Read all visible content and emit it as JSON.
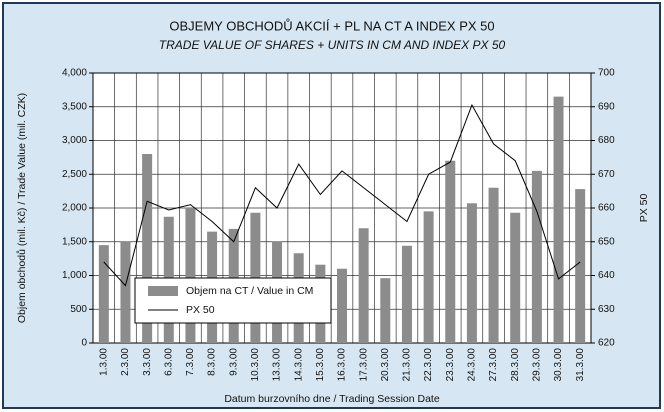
{
  "chart_data": {
    "type": "bar",
    "title": "OBJEMY OBCHODŮ AKCIÍ + PL NA CT A INDEX PX 50",
    "subtitle": "TRADE VALUE OF SHARES + UNITS IN CM AND INDEX PX 50",
    "ylabel": "Objem obchodů (mil. Kč) / Trade Value (mil. CZK)",
    "y2label": "PX 50",
    "xlabel": "Datum burzovního dne / Trading Session Date",
    "categories": [
      "1.3.00",
      "2.3.00",
      "3.3.00",
      "6.3.00",
      "7.3.00",
      "8.3.00",
      "9.3.00",
      "10.3.00",
      "13.3.00",
      "14.3.00",
      "15.3.00",
      "16.3.00",
      "17.3.00",
      "20.3.00",
      "21.3.00",
      "22.3.00",
      "23.3.00",
      "24.3.00",
      "27.3.00",
      "28.3.00",
      "29.3.00",
      "30.3.00",
      "31.3.00"
    ],
    "series": [
      {
        "name": "Objem na CT / Value in CM",
        "type": "bar",
        "color": "#8c8c8c",
        "values": [
          1450,
          1500,
          2800,
          1870,
          2000,
          1650,
          1690,
          1930,
          1500,
          1330,
          1160,
          1100,
          1700,
          960,
          1440,
          1950,
          2700,
          2070,
          2300,
          1930,
          2550,
          3650,
          2280
        ]
      },
      {
        "name": "PX 50",
        "type": "line",
        "axis": "y2",
        "color": "#000000",
        "values": [
          644,
          637,
          662,
          659.4,
          661,
          656,
          650,
          666,
          660,
          673,
          664,
          671,
          666,
          661,
          656,
          670,
          673.6,
          690.5,
          679,
          674,
          659,
          639,
          644
        ]
      }
    ],
    "ylim": [
      0,
      4000
    ],
    "yticks": [
      0,
      500,
      {
        "value": 1000,
        "label": "1,000"
      },
      {
        "value": 1500,
        "label": "1,500"
      },
      {
        "value": 2000,
        "label": "2,000"
      },
      {
        "value": 2500,
        "label": "2,500"
      },
      {
        "value": 3000,
        "label": "3,000"
      },
      {
        "value": 3500,
        "label": "3,500"
      },
      {
        "value": 4000,
        "label": "4,000"
      }
    ],
    "y2lim": [
      620,
      700
    ],
    "y2ticks": [
      620,
      630,
      640,
      650,
      660,
      670,
      680,
      690,
      700
    ],
    "grid": true
  }
}
